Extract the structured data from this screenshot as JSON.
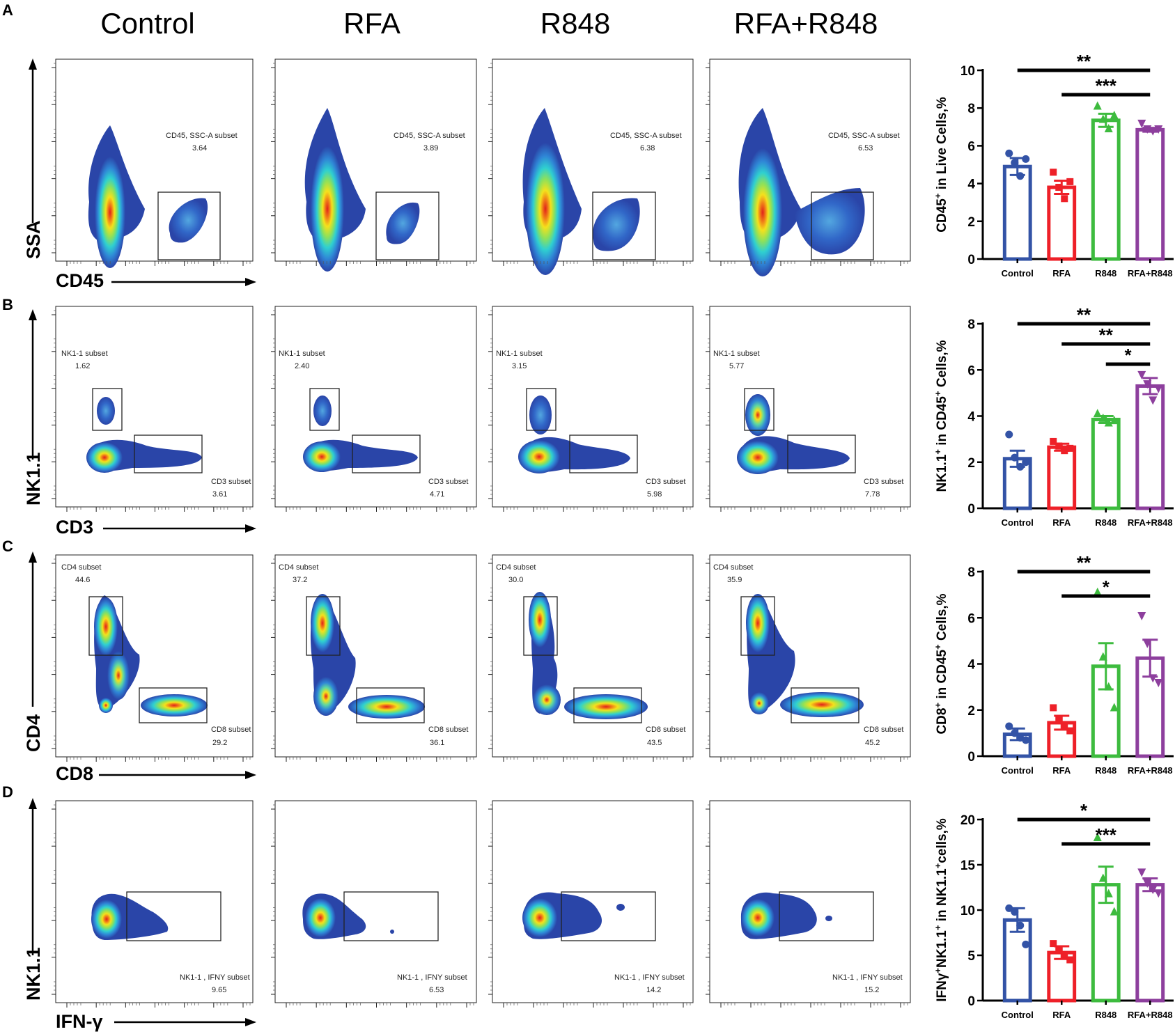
{
  "column_headers": [
    "Control",
    "RFA",
    "R848",
    "RFA+R848"
  ],
  "colors": {
    "Control": "#3353a6",
    "RFA": "#ee2028",
    "R848": "#3dbb3e",
    "RFA+R848": "#8d3f9d",
    "density_low": "#2a45a8",
    "density_mid": "#2fd0d0",
    "density_high": "#f4e11c",
    "density_peak": "#e0201b"
  },
  "panels": [
    {
      "letter": "A",
      "y_axis": "SSA",
      "x_axis": "CD45",
      "flow": [
        {
          "gates": [
            {
              "label": "CD45, SSC-A subset",
              "value": "3.64"
            }
          ]
        },
        {
          "gates": [
            {
              "label": "CD45, SSC-A subset",
              "value": "3.89"
            }
          ]
        },
        {
          "gates": [
            {
              "label": "CD45, SSC-A subset",
              "value": "6.38"
            }
          ]
        },
        {
          "gates": [
            {
              "label": "CD45, SSC-A subset",
              "value": "6.53"
            }
          ]
        }
      ],
      "chart_data": {
        "type": "bar",
        "ylabel_main": "CD45",
        "ylabel_sup": "+",
        "ylabel_rest": " in Live Cells,%",
        "ylim": [
          0,
          10
        ],
        "yticks": [
          "0",
          "2",
          "4",
          "6",
          "8",
          "10"
        ],
        "categories": [
          "Control",
          "RFA",
          "R848",
          "RFA+R848"
        ],
        "values": [
          4.9,
          3.8,
          7.35,
          6.85
        ],
        "errors": [
          0.45,
          0.35,
          0.35,
          0.1
        ],
        "points": [
          [
            5.6,
            5.1,
            4.4,
            5.3
          ],
          [
            4.6,
            3.8,
            3.2,
            4.1
          ],
          [
            8.1,
            7.4,
            6.9,
            7.6
          ],
          [
            7.2,
            6.9,
            6.8,
            6.9
          ]
        ],
        "markers": [
          "circle",
          "square",
          "triangle",
          "triangle-down"
        ],
        "significance": [
          {
            "from": "Control",
            "to": "RFA+R848",
            "label": "**"
          },
          {
            "from": "RFA",
            "to": "RFA+R848",
            "label": "***"
          }
        ]
      }
    },
    {
      "letter": "B",
      "y_axis": "NK1.1",
      "x_axis": "CD3",
      "flow": [
        {
          "gates": [
            {
              "label": "NK1-1 subset",
              "value": "1.62"
            },
            {
              "label": "CD3 subset",
              "value": "3.61"
            }
          ]
        },
        {
          "gates": [
            {
              "label": "NK1-1 subset",
              "value": "2.40"
            },
            {
              "label": "CD3 subset",
              "value": "4.71"
            }
          ]
        },
        {
          "gates": [
            {
              "label": "NK1-1 subset",
              "value": "3.15"
            },
            {
              "label": "CD3 subset",
              "value": "5.98"
            }
          ]
        },
        {
          "gates": [
            {
              "label": "NK1-1 subset",
              "value": "5.77"
            },
            {
              "label": "CD3 subset",
              "value": "7.78"
            }
          ]
        }
      ],
      "chart_data": {
        "type": "bar",
        "ylabel_main": "NK1.1",
        "ylabel_sup": "+",
        "ylabel_rest": " in CD45",
        "ylabel_sup2": "+",
        "ylabel_rest2": " Cells,%",
        "ylim": [
          0,
          8
        ],
        "yticks": [
          "0",
          "2",
          "4",
          "6",
          "8"
        ],
        "categories": [
          "Control",
          "RFA",
          "R848",
          "RFA+R848"
        ],
        "values": [
          2.15,
          2.65,
          3.85,
          5.3
        ],
        "errors": [
          0.35,
          0.15,
          0.15,
          0.35
        ],
        "points": [
          [
            3.2,
            2.2,
            1.8,
            2.0
          ],
          [
            2.9,
            2.7,
            2.5,
            2.6
          ],
          [
            4.1,
            3.9,
            3.7,
            3.8
          ],
          [
            5.8,
            5.4,
            4.7,
            5.2
          ]
        ],
        "markers": [
          "circle",
          "square",
          "triangle",
          "triangle-down"
        ],
        "significance": [
          {
            "from": "Control",
            "to": "RFA+R848",
            "label": "**"
          },
          {
            "from": "RFA",
            "to": "RFA+R848",
            "label": "**"
          },
          {
            "from": "R848",
            "to": "RFA+R848",
            "label": "*"
          }
        ]
      }
    },
    {
      "letter": "C",
      "y_axis": "CD4",
      "x_axis": "CD8",
      "flow": [
        {
          "gates": [
            {
              "label": "CD4 subset",
              "value": "44.6"
            },
            {
              "label": "CD8 subset",
              "value": "29.2"
            }
          ]
        },
        {
          "gates": [
            {
              "label": "CD4 subset",
              "value": "37.2"
            },
            {
              "label": "CD8 subset",
              "value": "36.1"
            }
          ]
        },
        {
          "gates": [
            {
              "label": "CD4 subset",
              "value": "30.0"
            },
            {
              "label": "CD8 subset",
              "value": "43.5"
            }
          ]
        },
        {
          "gates": [
            {
              "label": "CD4 subset",
              "value": "35.9"
            },
            {
              "label": "CD8 subset",
              "value": "45.2"
            }
          ]
        }
      ],
      "chart_data": {
        "type": "bar",
        "ylabel_main": "CD8",
        "ylabel_sup": "+",
        "ylabel_rest": " in CD45",
        "ylabel_sup2": "+",
        "ylabel_rest2": " Cells,%",
        "ylim": [
          0,
          8
        ],
        "yticks": [
          "0",
          "2",
          "4",
          "6",
          "8"
        ],
        "categories": [
          "Control",
          "RFA",
          "R848",
          "RFA+R848"
        ],
        "values": [
          0.95,
          1.45,
          3.9,
          4.25
        ],
        "errors": [
          0.25,
          0.3,
          1.0,
          0.8
        ],
        "points": [
          [
            1.3,
            1.0,
            0.8,
            0.7
          ],
          [
            2.1,
            1.6,
            1.3,
            1.1
          ],
          [
            7.1,
            4.3,
            3.0,
            2.1
          ],
          [
            6.1,
            4.9,
            3.4,
            3.2
          ]
        ],
        "markers": [
          "circle",
          "square",
          "triangle",
          "triangle-down"
        ],
        "significance": [
          {
            "from": "Control",
            "to": "RFA+R848",
            "label": "**"
          },
          {
            "from": "RFA",
            "to": "RFA+R848",
            "label": "*"
          }
        ]
      }
    },
    {
      "letter": "D",
      "y_axis": "NK1.1",
      "x_axis": "IFN-γ",
      "flow": [
        {
          "gates": [
            {
              "label": "NK1-1 , IFNY subset",
              "value": "9.65"
            }
          ]
        },
        {
          "gates": [
            {
              "label": "NK1-1 , IFNY subset",
              "value": "6.53"
            }
          ]
        },
        {
          "gates": [
            {
              "label": "NK1-1 , IFNY subset",
              "value": "14.2"
            }
          ]
        },
        {
          "gates": [
            {
              "label": "NK1-1 , IFNY subset",
              "value": "15.2"
            }
          ]
        }
      ],
      "chart_data": {
        "type": "bar",
        "ylabel_main": "IFNγ",
        "ylabel_sup": "+",
        "ylabel_rest": "NK1.1",
        "ylabel_sup2": "+",
        "ylabel_rest2": " in NK1.1",
        "ylabel_sup3": "+",
        "ylabel_rest3": "cells,%",
        "ylim": [
          0,
          20
        ],
        "yticks": [
          "0",
          "5",
          "10",
          "15",
          "20"
        ],
        "categories": [
          "Control",
          "RFA",
          "R848",
          "RFA+R848"
        ],
        "values": [
          8.9,
          5.3,
          12.8,
          12.8
        ],
        "errors": [
          1.3,
          0.7,
          2.0,
          0.7
        ],
        "points": [
          [
            10.2,
            9.8,
            8.3,
            6.2
          ],
          [
            6.3,
            5.6,
            5.0,
            4.5
          ],
          [
            18.0,
            13.5,
            11.8,
            9.8
          ],
          [
            14.2,
            13.0,
            12.3,
            11.9
          ]
        ],
        "markers": [
          "circle",
          "square",
          "triangle",
          "triangle-down"
        ],
        "significance": [
          {
            "from": "Control",
            "to": "RFA+R848",
            "label": "*"
          },
          {
            "from": "RFA",
            "to": "RFA+R848",
            "label": "***"
          }
        ]
      }
    }
  ]
}
